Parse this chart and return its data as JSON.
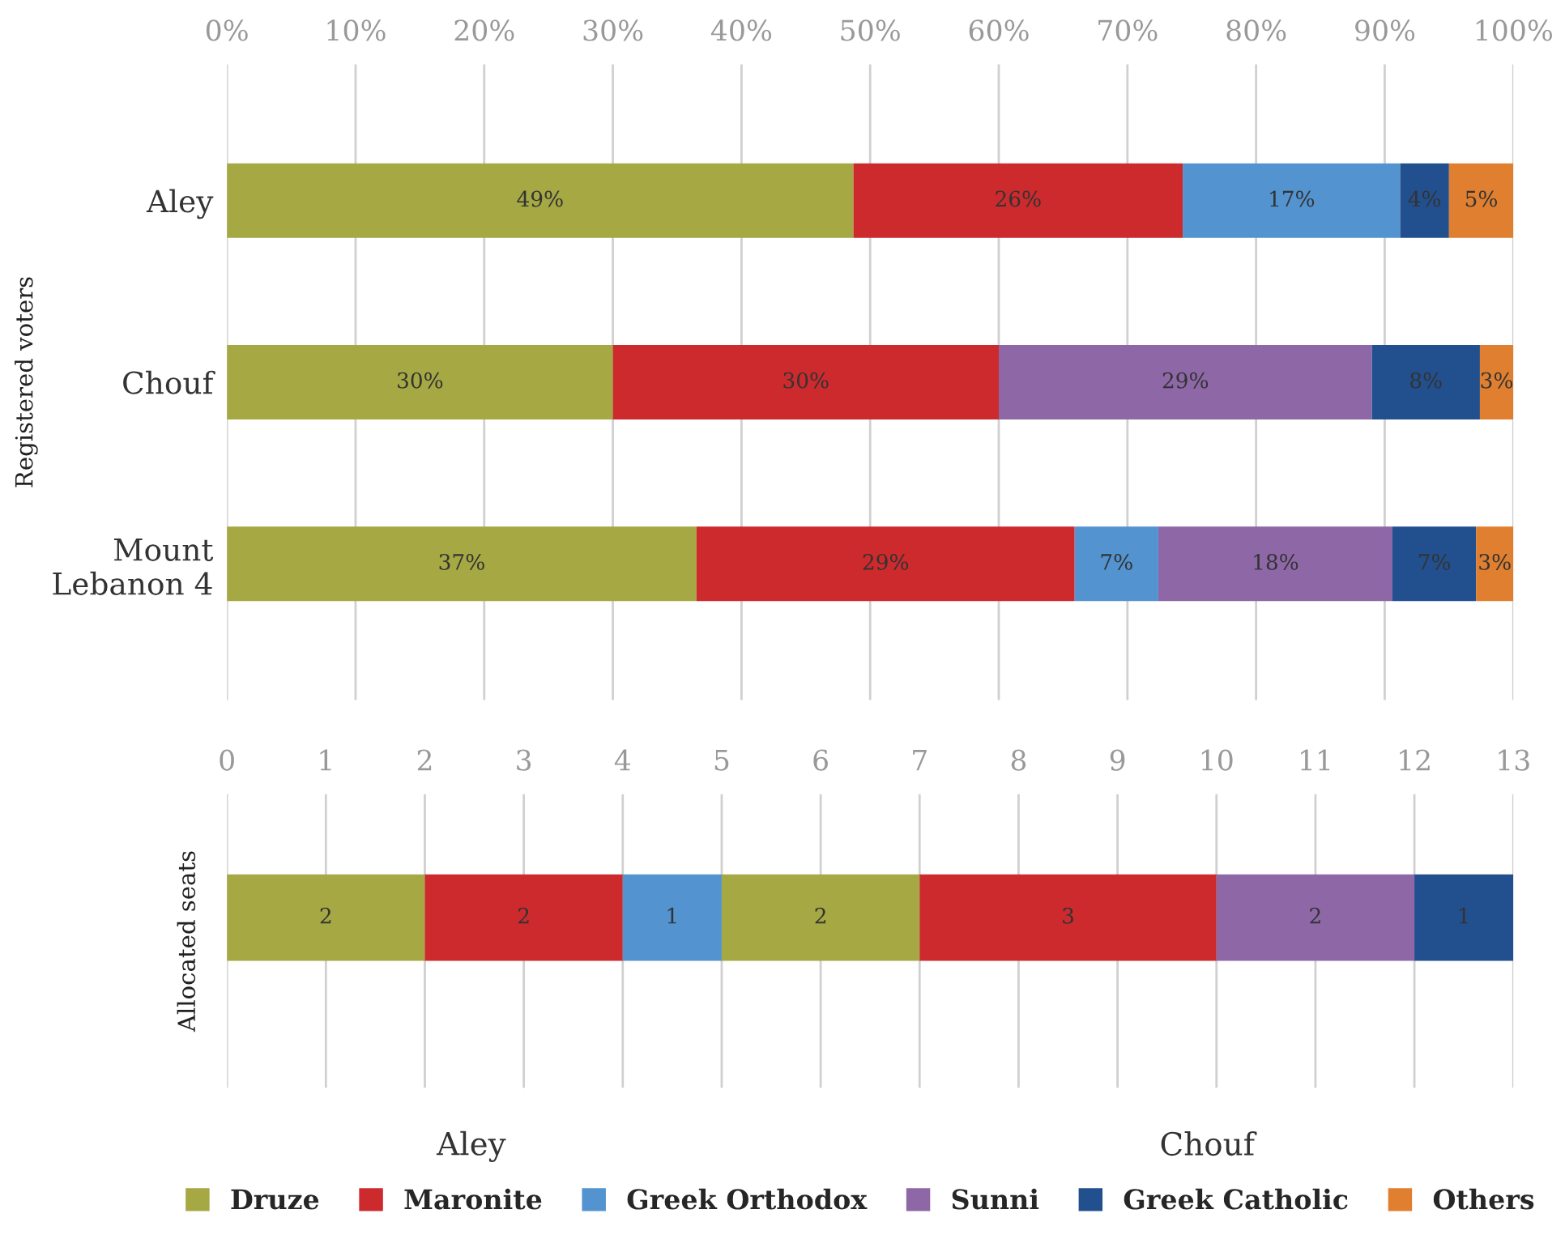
{
  "chart_data": [
    {
      "type": "bar",
      "orientation": "horizontal",
      "stacked": true,
      "ylabel": "Registered voters",
      "categories": [
        "Aley",
        "Chouf",
        "Mount\nLebanon 4"
      ],
      "xlim": [
        0,
        100
      ],
      "xticks": [
        {
          "value": 0,
          "label": "0%"
        },
        {
          "value": 10,
          "label": "10%"
        },
        {
          "value": 20,
          "label": "20%"
        },
        {
          "value": 30,
          "label": "30%"
        },
        {
          "value": 40,
          "label": "40%"
        },
        {
          "value": 50,
          "label": "50%"
        },
        {
          "value": 60,
          "label": "60%"
        },
        {
          "value": 70,
          "label": "70%"
        },
        {
          "value": 80,
          "label": "80%"
        },
        {
          "value": 90,
          "label": "90%"
        },
        {
          "value": 100,
          "label": "100%"
        }
      ],
      "grid": "x",
      "legend": "bottom",
      "series": [
        {
          "name": "Druze",
          "color": "#a5a843",
          "values": [
            48.7,
            30.0,
            36.5
          ],
          "value_labels": [
            "49%",
            "30%",
            "37%"
          ]
        },
        {
          "name": "Maronite",
          "color": "#cc2a2d",
          "values": [
            25.6,
            30.0,
            29.4
          ],
          "value_labels": [
            "26%",
            "30%",
            "29%"
          ]
        },
        {
          "name": "Greek Orthodox",
          "color": "#5393d0",
          "values": [
            16.9,
            null,
            6.5
          ],
          "value_labels": [
            "17%",
            null,
            "7%"
          ]
        },
        {
          "name": "Sunni",
          "color": "#8e67a7",
          "values": [
            null,
            29.0,
            18.2
          ],
          "value_labels": [
            null,
            "29%",
            "18%"
          ]
        },
        {
          "name": "Greek Catholic",
          "color": "#22508f",
          "values": [
            3.8,
            8.4,
            6.5
          ],
          "value_labels": [
            "4%",
            "8%",
            "7%"
          ]
        },
        {
          "name": "Others",
          "color": "#e07f2f",
          "values": [
            5.0,
            2.6,
            2.9
          ],
          "value_labels": [
            "5%",
            "3%",
            "3%"
          ]
        }
      ]
    },
    {
      "type": "bar",
      "orientation": "horizontal",
      "stacked": true,
      "ylabel": "Allocated seats",
      "categories": [
        null
      ],
      "xlim": [
        0,
        13
      ],
      "xticks": [
        0,
        1,
        2,
        3,
        4,
        5,
        6,
        7,
        8,
        9,
        10,
        11,
        12,
        13
      ],
      "grid": "x",
      "data_labels": true,
      "annotations": [
        "Aley",
        "Chouf"
      ],
      "series": [
        {
          "color": "#a5a843",
          "values": [
            2
          ]
        },
        {
          "color": "#cc2a2d",
          "values": [
            2
          ]
        },
        {
          "color": "#5393d0",
          "values": [
            1
          ]
        },
        {
          "color": "#a5a843",
          "values": [
            2
          ]
        },
        {
          "color": "#cc2a2d",
          "values": [
            3
          ]
        },
        {
          "color": "#8e67a7",
          "values": [
            2
          ]
        },
        {
          "color": "#22508f",
          "values": [
            1
          ]
        }
      ]
    }
  ]
}
